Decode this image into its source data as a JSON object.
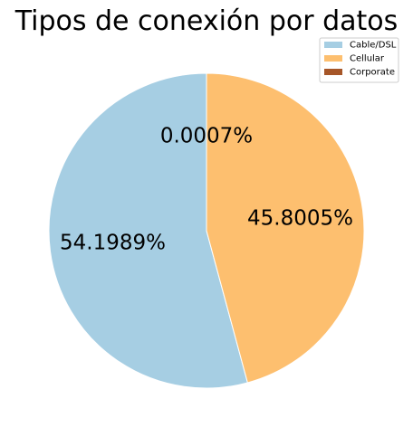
{
  "chart_data": {
    "type": "pie",
    "title": "Tipos de conexión por datos",
    "slices": [
      {
        "label": "Cable/DSL",
        "value": 54.1989,
        "pct_text": "54.1989%",
        "color": "#a6cee3"
      },
      {
        "label": "Cellular",
        "value": 45.8005,
        "pct_text": "45.8005%",
        "color": "#fdbf6f"
      },
      {
        "label": "Corporate",
        "value": 0.0007,
        "pct_text": "0.0007%",
        "color": "#a65628"
      }
    ],
    "start_angle_deg": 90,
    "direction": "counterclockwise",
    "legend_position": "upper-right"
  }
}
